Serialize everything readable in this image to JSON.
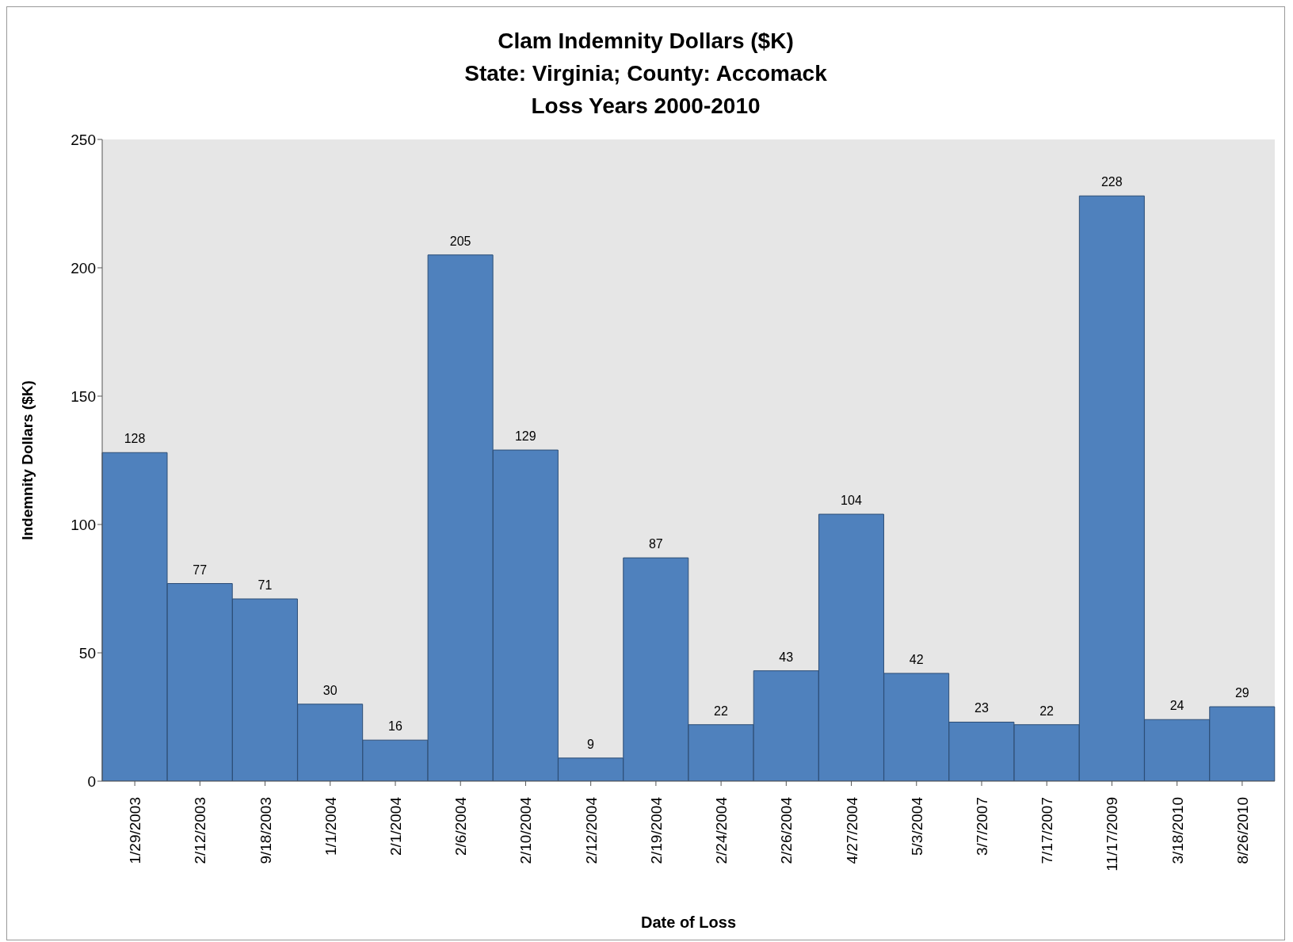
{
  "chart_data": {
    "type": "bar",
    "title": "Clam Indemnity Dollars ($K)\nState: Virginia; County: Accomack\nLoss Years 2000-2010",
    "xlabel": "Date of Loss",
    "ylabel": "Indemnity Dollars ($K)",
    "categories": [
      "1/29/2003",
      "2/12/2003",
      "9/18/2003",
      "1/1/2004",
      "2/1/2004",
      "2/6/2004",
      "2/10/2004",
      "2/12/2004",
      "2/19/2004",
      "2/24/2004",
      "2/26/2004",
      "4/27/2004",
      "5/3/2004",
      "3/7/2007",
      "7/17/2007",
      "11/17/2009",
      "3/18/2010",
      "8/26/2010"
    ],
    "values": [
      128,
      77,
      71,
      30,
      16,
      205,
      129,
      9,
      87,
      22,
      43,
      104,
      42,
      23,
      22,
      228,
      24,
      29
    ],
    "color": "#4f81bd",
    "ylim": [
      0,
      250
    ],
    "yticks": [
      0,
      50,
      100,
      150,
      200,
      250
    ],
    "data_labels": true
  }
}
